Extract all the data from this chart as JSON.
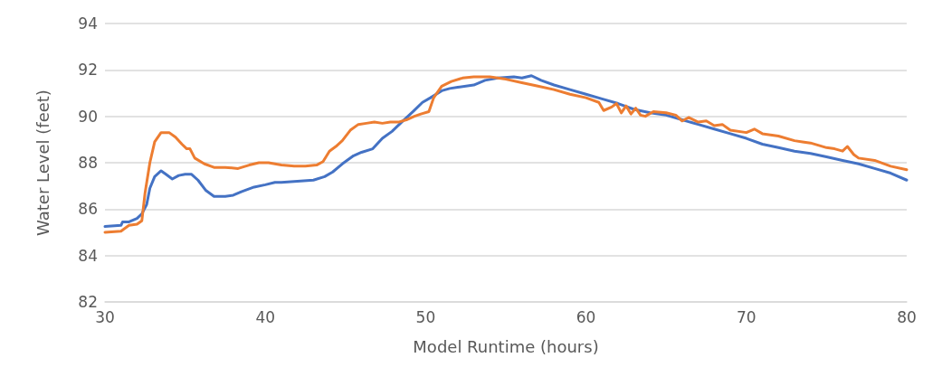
{
  "chart_data": {
    "type": "line",
    "xlabel": "Model Runtime (hours)",
    "ylabel": "Water Level (feet)",
    "xlim": [
      30,
      80
    ],
    "xticks": [
      30,
      40,
      50,
      60,
      70,
      80
    ],
    "ylim": [
      82,
      94
    ],
    "yticks": [
      82,
      84,
      86,
      88,
      90,
      92,
      94
    ],
    "grid": "y",
    "marker": "none",
    "line_style": "solid",
    "series": [
      {
        "color": "#4472c4",
        "x": [
          30,
          31,
          31.1,
          31.5,
          32,
          32.3,
          32.6,
          32.8,
          33.1,
          33.5,
          33.8,
          34.2,
          34.6,
          35,
          35.4,
          35.8,
          36.3,
          36.8,
          37.5,
          38,
          38.5,
          39.3,
          40,
          40.6,
          41,
          42,
          43,
          43.7,
          44.2,
          44.8,
          45.5,
          46,
          46.7,
          47.3,
          47.9,
          48.5,
          49.2,
          49.8,
          50.3,
          51,
          51.5,
          52,
          53,
          53.7,
          54.5,
          55.5,
          56,
          56.6,
          57.2,
          58,
          59,
          60,
          61,
          62,
          63,
          64,
          65,
          66,
          67,
          68,
          69,
          70,
          71,
          72,
          73,
          74,
          75,
          76,
          77,
          78,
          79,
          80
        ],
        "values": [
          85.25,
          85.3,
          85.45,
          85.45,
          85.6,
          85.8,
          86.2,
          86.9,
          87.4,
          87.65,
          87.5,
          87.3,
          87.45,
          87.5,
          87.5,
          87.25,
          86.8,
          86.55,
          86.55,
          86.6,
          86.75,
          86.95,
          87.05,
          87.15,
          87.15,
          87.2,
          87.25,
          87.4,
          87.6,
          87.95,
          88.3,
          88.45,
          88.6,
          89.05,
          89.35,
          89.75,
          90.2,
          90.6,
          90.8,
          91.1,
          91.2,
          91.25,
          91.35,
          91.55,
          91.65,
          91.7,
          91.65,
          91.75,
          91.55,
          91.35,
          91.15,
          90.95,
          90.75,
          90.55,
          90.3,
          90.15,
          90.05,
          89.85,
          89.65,
          89.45,
          89.25,
          89.05,
          88.8,
          88.65,
          88.5,
          88.4,
          88.25,
          88.1,
          87.95,
          87.75,
          87.55,
          87.25
        ]
      },
      {
        "color": "#ed7d31",
        "x": [
          30,
          31,
          31.5,
          32,
          32.3,
          32.5,
          32.8,
          33.1,
          33.5,
          34,
          34.4,
          34.8,
          35.1,
          35.3,
          35.6,
          36.2,
          36.8,
          37.5,
          38.3,
          39,
          39.6,
          40.2,
          41,
          41.8,
          42.5,
          43.2,
          43.6,
          44,
          44.4,
          44.8,
          45.3,
          45.8,
          46.3,
          46.8,
          47.3,
          47.8,
          48.3,
          48.8,
          49.3,
          49.7,
          50.2,
          50.5,
          51,
          51.6,
          52.3,
          53,
          54,
          55,
          56,
          57,
          58,
          59,
          60,
          60.8,
          61.1,
          61.6,
          61.9,
          62.2,
          62.5,
          62.8,
          63.1,
          63.4,
          63.7,
          64.2,
          65,
          65.6,
          66,
          66.4,
          67,
          67.5,
          68,
          68.5,
          69,
          70,
          70.5,
          71,
          71.5,
          72,
          73,
          73.5,
          74,
          75,
          75.5,
          76,
          76.3,
          76.7,
          77,
          78,
          79,
          80
        ],
        "values": [
          85,
          85.05,
          85.3,
          85.35,
          85.5,
          86.7,
          88,
          88.9,
          89.3,
          89.3,
          89.1,
          88.8,
          88.6,
          88.6,
          88.2,
          87.95,
          87.8,
          87.8,
          87.75,
          87.9,
          88,
          88,
          87.9,
          87.85,
          87.85,
          87.9,
          88.05,
          88.5,
          88.7,
          88.95,
          89.4,
          89.65,
          89.7,
          89.75,
          89.7,
          89.75,
          89.75,
          89.85,
          90,
          90.1,
          90.2,
          90.8,
          91.3,
          91.5,
          91.65,
          91.7,
          91.7,
          91.6,
          91.45,
          91.3,
          91.15,
          90.95,
          90.8,
          90.6,
          90.25,
          90.4,
          90.55,
          90.15,
          90.45,
          90.1,
          90.35,
          90.05,
          90,
          90.2,
          90.15,
          90.05,
          89.8,
          89.95,
          89.75,
          89.8,
          89.6,
          89.65,
          89.4,
          89.3,
          89.45,
          89.25,
          89.2,
          89.15,
          88.95,
          88.9,
          88.85,
          88.65,
          88.6,
          88.5,
          88.7,
          88.35,
          88.2,
          88.1,
          87.85,
          87.7
        ]
      }
    ]
  }
}
